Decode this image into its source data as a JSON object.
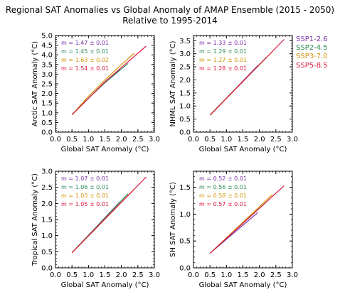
{
  "figure": {
    "title_line1": "Regional SAT Anomalies vs Global Anomaly of AMAP Ensemble (2015 - 2050)",
    "title_line2": "Relative to 1995-2014"
  },
  "colors": {
    "SSP1-2.6": "#7b2fa8",
    "SSP2-4.5": "#2e8b57",
    "SSP3-7.0": "#d4940a",
    "SSP5-8.5": "#dc143c"
  },
  "legend": {
    "placement": "right of top-right panel",
    "entries": [
      "SSP1-2.6",
      "SSP2-4.5",
      "SSP3-7.0",
      "SSP5-8.5"
    ]
  },
  "chart_data": [
    {
      "type": "line",
      "xlabel": "Global SAT Anomaly (°C)",
      "ylabel": "Arctic SAT Anomaly (°C)",
      "xlim": [
        0,
        3.0
      ],
      "ylim": [
        0,
        5.0
      ],
      "xticks": [
        "0.0",
        "0.5",
        "1.0",
        "1.5",
        "2.0",
        "2.5",
        "3.0"
      ],
      "yticks": [
        "0.0",
        "0.5",
        "1.0",
        "1.5",
        "2.0",
        "2.5",
        "3.0",
        "3.5",
        "4.0",
        "4.5",
        "5.0"
      ],
      "series": [
        {
          "name": "SSP1-2.6",
          "slope_label": "m =  1.47 ± 0.01",
          "x": [
            0.5,
            1.0,
            1.5,
            1.95
          ],
          "y": [
            0.9,
            1.75,
            2.6,
            3.25
          ]
        },
        {
          "name": "SSP2-4.5",
          "slope_label": "m =  1.45 ± 0.01",
          "x": [
            0.5,
            1.0,
            1.5,
            2.2
          ],
          "y": [
            0.9,
            1.75,
            2.55,
            3.55
          ]
        },
        {
          "name": "SSP3-7.0",
          "slope_label": "m =  1.63 ± 0.02",
          "x": [
            0.5,
            1.0,
            1.5,
            2.0,
            2.4
          ],
          "y": [
            0.9,
            1.85,
            2.7,
            3.5,
            4.1
          ]
        },
        {
          "name": "SSP5-8.5",
          "slope_label": "m =  1.54 ± 0.01",
          "x": [
            0.5,
            1.0,
            1.5,
            2.0,
            2.75
          ],
          "y": [
            0.9,
            1.75,
            2.6,
            3.35,
            4.45
          ]
        }
      ]
    },
    {
      "type": "line",
      "xlabel": "Global SAT Anomaly (°C)",
      "ylabel": "NHML SAT Anomaly (°C)",
      "xlim": [
        0,
        3.0
      ],
      "ylim": [
        0,
        3.7
      ],
      "xticks": [
        "0.0",
        "0.5",
        "1.0",
        "1.5",
        "2.0",
        "2.5",
        "3.0"
      ],
      "yticks": [
        "0.0",
        "0.5",
        "1.0",
        "1.5",
        "2.0",
        "2.5",
        "3.0",
        "3.5"
      ],
      "series": [
        {
          "name": "SSP1-2.6",
          "slope_label": "m =  1.33 ± 0.01",
          "x": [
            0.5,
            1.95
          ],
          "y": [
            0.65,
            2.55
          ]
        },
        {
          "name": "SSP2-4.5",
          "slope_label": "m =  1.29 ± 0.01",
          "x": [
            0.5,
            2.2
          ],
          "y": [
            0.65,
            2.85
          ]
        },
        {
          "name": "SSP3-7.0",
          "slope_label": "m =  1.27 ± 0.01",
          "x": [
            0.5,
            2.4
          ],
          "y": [
            0.65,
            3.1
          ]
        },
        {
          "name": "SSP5-8.5",
          "slope_label": "m =  1.28 ± 0.01",
          "x": [
            0.5,
            2.75
          ],
          "y": [
            0.65,
            3.55
          ]
        }
      ]
    },
    {
      "type": "line",
      "xlabel": "Global SAT Anomaly (°C)",
      "ylabel": "Tropical SAT Anomaly (°C)",
      "xlim": [
        0,
        3.0
      ],
      "ylim": [
        0,
        3.0
      ],
      "xticks": [
        "0.0",
        "0.5",
        "1.0",
        "1.5",
        "2.0",
        "2.5",
        "3.0"
      ],
      "yticks": [
        "0.0",
        "0.5",
        "1.0",
        "1.5",
        "2.0",
        "2.5",
        "3.0"
      ],
      "series": [
        {
          "name": "SSP1-2.6",
          "slope_label": "m =  1.07 ± 0.01",
          "x": [
            0.5,
            1.95
          ],
          "y": [
            0.47,
            2.05
          ]
        },
        {
          "name": "SSP2-4.5",
          "slope_label": "m =  1.06 ± 0.01",
          "x": [
            0.5,
            2.2
          ],
          "y": [
            0.47,
            2.3
          ]
        },
        {
          "name": "SSP3-7.0",
          "slope_label": "m =  1.03 ± 0.01",
          "x": [
            0.5,
            2.4
          ],
          "y": [
            0.47,
            2.45
          ]
        },
        {
          "name": "SSP5-8.5",
          "slope_label": "m =  1.05 ± 0.01",
          "x": [
            0.5,
            2.75
          ],
          "y": [
            0.47,
            2.82
          ]
        }
      ]
    },
    {
      "type": "line",
      "xlabel": "Global SAT Anomaly (°C)",
      "ylabel": "SH SAT Anomaly (°C)",
      "xlim": [
        0,
        3.0
      ],
      "ylim": [
        0,
        1.8
      ],
      "xticks": [
        "0.0",
        "0.5",
        "1.0",
        "1.5",
        "2.0",
        "2.5",
        "3.0"
      ],
      "yticks": [
        "0.0",
        "0.5",
        "1.0",
        "1.5"
      ],
      "series": [
        {
          "name": "SSP1-2.6",
          "slope_label": "m =  0.52 ± 0.01",
          "x": [
            0.5,
            1.95
          ],
          "y": [
            0.27,
            1.03
          ]
        },
        {
          "name": "SSP2-4.5",
          "slope_label": "m =  0.56 ± 0.01",
          "x": [
            0.5,
            2.2
          ],
          "y": [
            0.27,
            1.22
          ]
        },
        {
          "name": "SSP3-7.0",
          "slope_label": "m =  0.58 ± 0.01",
          "x": [
            0.5,
            2.4
          ],
          "y": [
            0.27,
            1.37
          ]
        },
        {
          "name": "SSP5-8.5",
          "slope_label": "m =  0.57 ± 0.01",
          "x": [
            0.5,
            2.75
          ],
          "y": [
            0.27,
            1.53
          ]
        }
      ]
    }
  ]
}
